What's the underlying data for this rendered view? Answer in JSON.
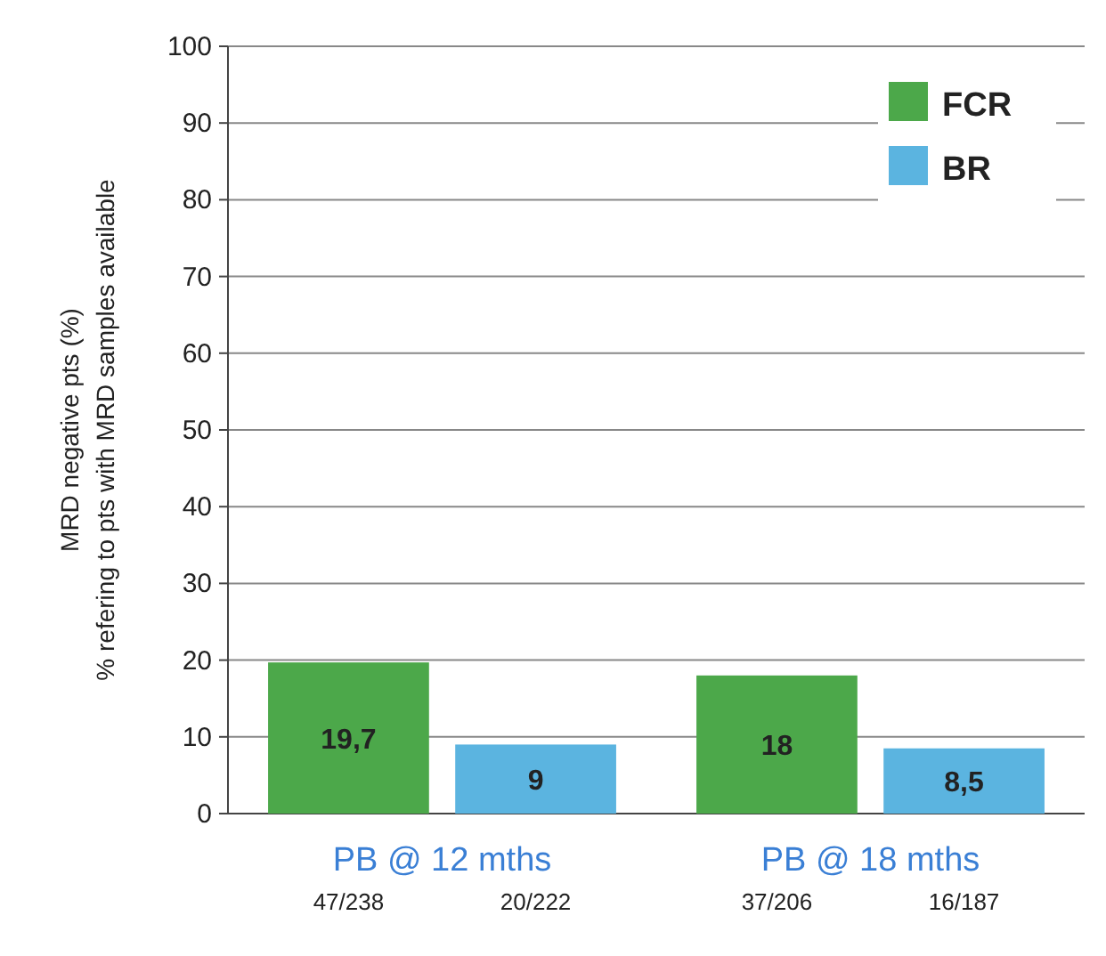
{
  "chart_data": {
    "type": "bar",
    "ylabel": "MRD negative pts (%)",
    "categories": [
      "PB @ 12 mths",
      "PB @ 18 mths"
    ],
    "series": [
      {
        "name": "FCR",
        "color": "#4ca84a",
        "values": [
          19.7,
          18
        ],
        "value_labels": [
          "19,7",
          "18"
        ]
      },
      {
        "name": "BR",
        "color": "#5bb4e0",
        "values": [
          9,
          8.5
        ],
        "value_labels": [
          "9",
          "8,5"
        ]
      }
    ],
    "ylim": [
      0,
      100
    ],
    "yticks": [
      0,
      10,
      20,
      30,
      40,
      50,
      60,
      70,
      80,
      90,
      100
    ],
    "grid": "y",
    "legend": "top right",
    "annotations": [
      "% refering to pts with MRD samples available",
      "47/238",
      "20/222",
      "37/206",
      "16/187"
    ]
  }
}
